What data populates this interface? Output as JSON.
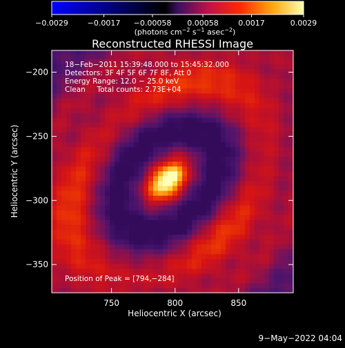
{
  "colorbar": {
    "ticks": [
      {
        "value": -0.0029,
        "label": "−0.0029"
      },
      {
        "value": -0.0017,
        "label": "−0.0017"
      },
      {
        "value": -0.00058,
        "label": "−0.00058"
      },
      {
        "value": 0.00058,
        "label": "0.00058"
      },
      {
        "value": 0.0017,
        "label": "0.0017"
      },
      {
        "value": 0.0029,
        "label": "0.0029"
      }
    ],
    "range": [
      -0.0029,
      0.0029
    ],
    "unit_text": "(photons cm",
    "unit_exp1": "−2",
    "unit_mid": " s",
    "unit_exp2": "−1",
    "unit_mid2": " asec",
    "unit_exp3": "−2",
    "unit_close": ")"
  },
  "chart_data": {
    "type": "heatmap",
    "title": "Reconstructed RHESSI Image",
    "xlabel": "Heliocentric X (arcsec)",
    "ylabel": "Heliocentric Y (arcsec)",
    "xlim": [
      703,
      893
    ],
    "ylim": [
      -372,
      -183
    ],
    "xticks": [
      {
        "value": 750,
        "label": "750"
      },
      {
        "value": 800,
        "label": "800"
      },
      {
        "value": 850,
        "label": "850"
      }
    ],
    "yticks": [
      {
        "value": -200,
        "label": "−200"
      },
      {
        "value": -250,
        "label": "−250"
      },
      {
        "value": -300,
        "label": "−300"
      },
      {
        "value": -350,
        "label": "−350"
      }
    ],
    "peak_position": [
      794,
      -284
    ],
    "annotations": {
      "time": "18−Feb−2011 15:39:48.000 to 15:45:32.000",
      "detectors": "Detectors: 3F 4F 5F 6F 7F 8F, Att 0",
      "energy": "Energy Range: 12.0 − 25.0 keV",
      "method": "Clean     Total counts: 2.73E+04",
      "peak": "Position of Peak = [794,−284]"
    }
  },
  "footer": {
    "timestamp": "9−May−2022 04:04"
  }
}
